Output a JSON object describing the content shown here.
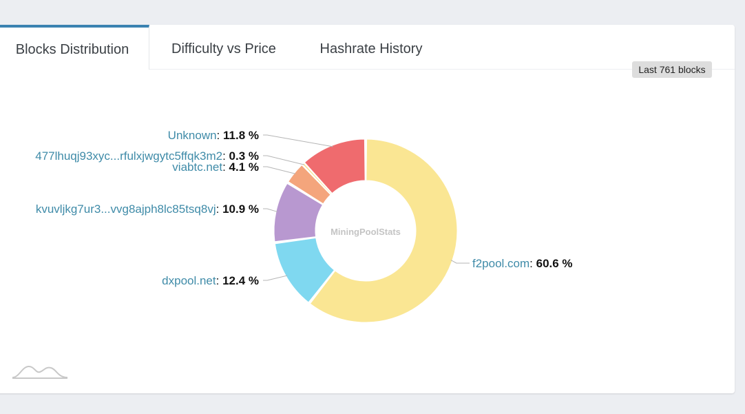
{
  "tabs": [
    {
      "label": "Blocks Distribution",
      "active": true
    },
    {
      "label": "Difficulty vs Price",
      "active": false
    },
    {
      "label": "Hashrate History",
      "active": false
    }
  ],
  "badge": "Last 761 blocks",
  "center_label": "MiningPoolStats",
  "chart_data": {
    "type": "pie",
    "donut": true,
    "slices": [
      {
        "name": "f2pool.com",
        "value": 60.6,
        "display": "60.6 %",
        "color": "#fae693"
      },
      {
        "name": "dxpool.net",
        "value": 12.4,
        "display": "12.4 %",
        "color": "#7fd8f0"
      },
      {
        "name": "kvuvljkg7ur3...vvg8ajph8lc85tsq8vj",
        "value": 10.9,
        "display": "10.9 %",
        "color": "#b898d0"
      },
      {
        "name": "viabtc.net",
        "value": 4.1,
        "display": "4.1 %",
        "color": "#f4a57c"
      },
      {
        "name": "477lhuqj93xyc...rfulxjwgytc5ffqk3m2",
        "value": 0.3,
        "display": "0.3 %",
        "color": "#f6e08a"
      },
      {
        "name": "Unknown",
        "value": 11.8,
        "display": "11.8 %",
        "color": "#ef6b6e"
      }
    ]
  },
  "colors": {
    "label": "#3f8ba8",
    "value": "#111111",
    "accent": "#3b82b1"
  },
  "icons": {
    "watermark": "mountain-logo-icon"
  }
}
